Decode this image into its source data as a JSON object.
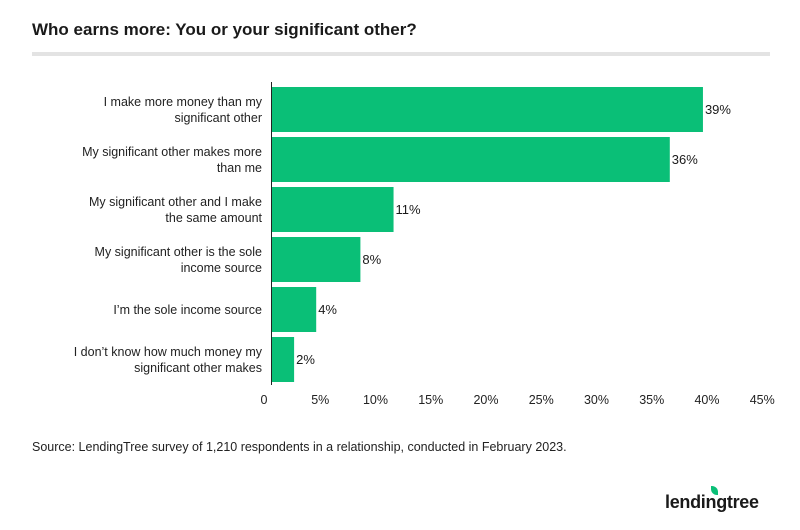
{
  "title": "Who earns more: You or your significant other?",
  "source": "Source: LendingTree survey of 1,210 respondents in a relationship, conducted in February 2023.",
  "logo_text": "lendingtree",
  "colors": {
    "bar": "#0abf77",
    "accent_rule": "#e3e3e3",
    "axis": "#222222"
  },
  "chart_data": {
    "type": "bar",
    "orientation": "horizontal",
    "categories": [
      "I make more money than my significant other",
      "My significant other makes more than me",
      "My significant other and I make the same amount",
      "My significant other is the sole income source",
      "I’m the sole income source",
      "I don’t know how much money my significant other makes"
    ],
    "values": [
      39,
      36,
      11,
      8,
      4,
      2
    ],
    "value_labels": [
      "39%",
      "36%",
      "11%",
      "8%",
      "4%",
      "2%"
    ],
    "xlim": [
      0,
      45
    ],
    "x_ticks": [
      0,
      5,
      10,
      15,
      20,
      25,
      30,
      35,
      40,
      45
    ],
    "x_tick_labels": [
      "0",
      "5%",
      "10%",
      "15%",
      "20%",
      "25%",
      "30%",
      "35%",
      "40%",
      "45%"
    ],
    "grid": false,
    "legend": "none"
  }
}
